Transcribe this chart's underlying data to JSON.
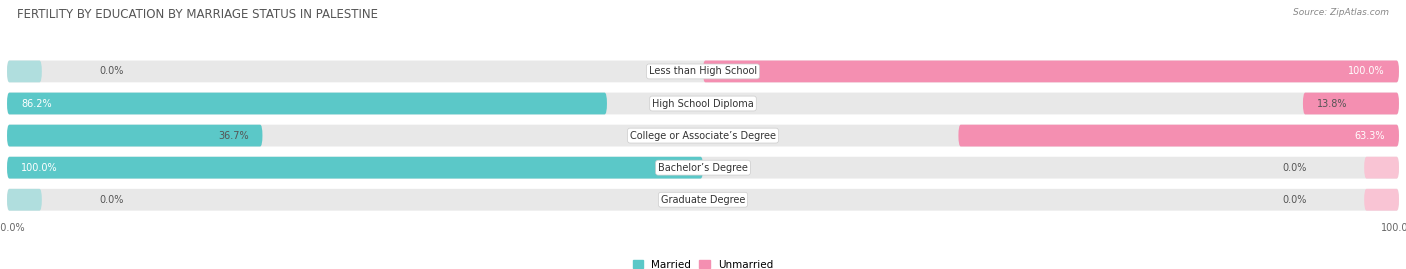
{
  "title": "FERTILITY BY EDUCATION BY MARRIAGE STATUS IN PALESTINE",
  "source": "Source: ZipAtlas.com",
  "categories": [
    "Less than High School",
    "High School Diploma",
    "College or Associate’s Degree",
    "Bachelor’s Degree",
    "Graduate Degree"
  ],
  "married": [
    0.0,
    86.2,
    36.7,
    100.0,
    0.0
  ],
  "unmarried": [
    100.0,
    13.8,
    63.3,
    0.0,
    0.0
  ],
  "married_color": "#5bc8c8",
  "unmarried_color": "#f48fb1",
  "married_color_light": "#b0dede",
  "unmarried_color_light": "#f9c4d4",
  "bg_bar": "#e8e8e8",
  "bar_height": 0.68,
  "figsize": [
    14.06,
    2.69
  ],
  "dpi": 100,
  "title_fontsize": 8.5,
  "label_fontsize": 7.0,
  "value_fontsize": 7.0,
  "axis_label_fontsize": 7.0,
  "legend_fontsize": 7.5,
  "background_color": "#ffffff"
}
